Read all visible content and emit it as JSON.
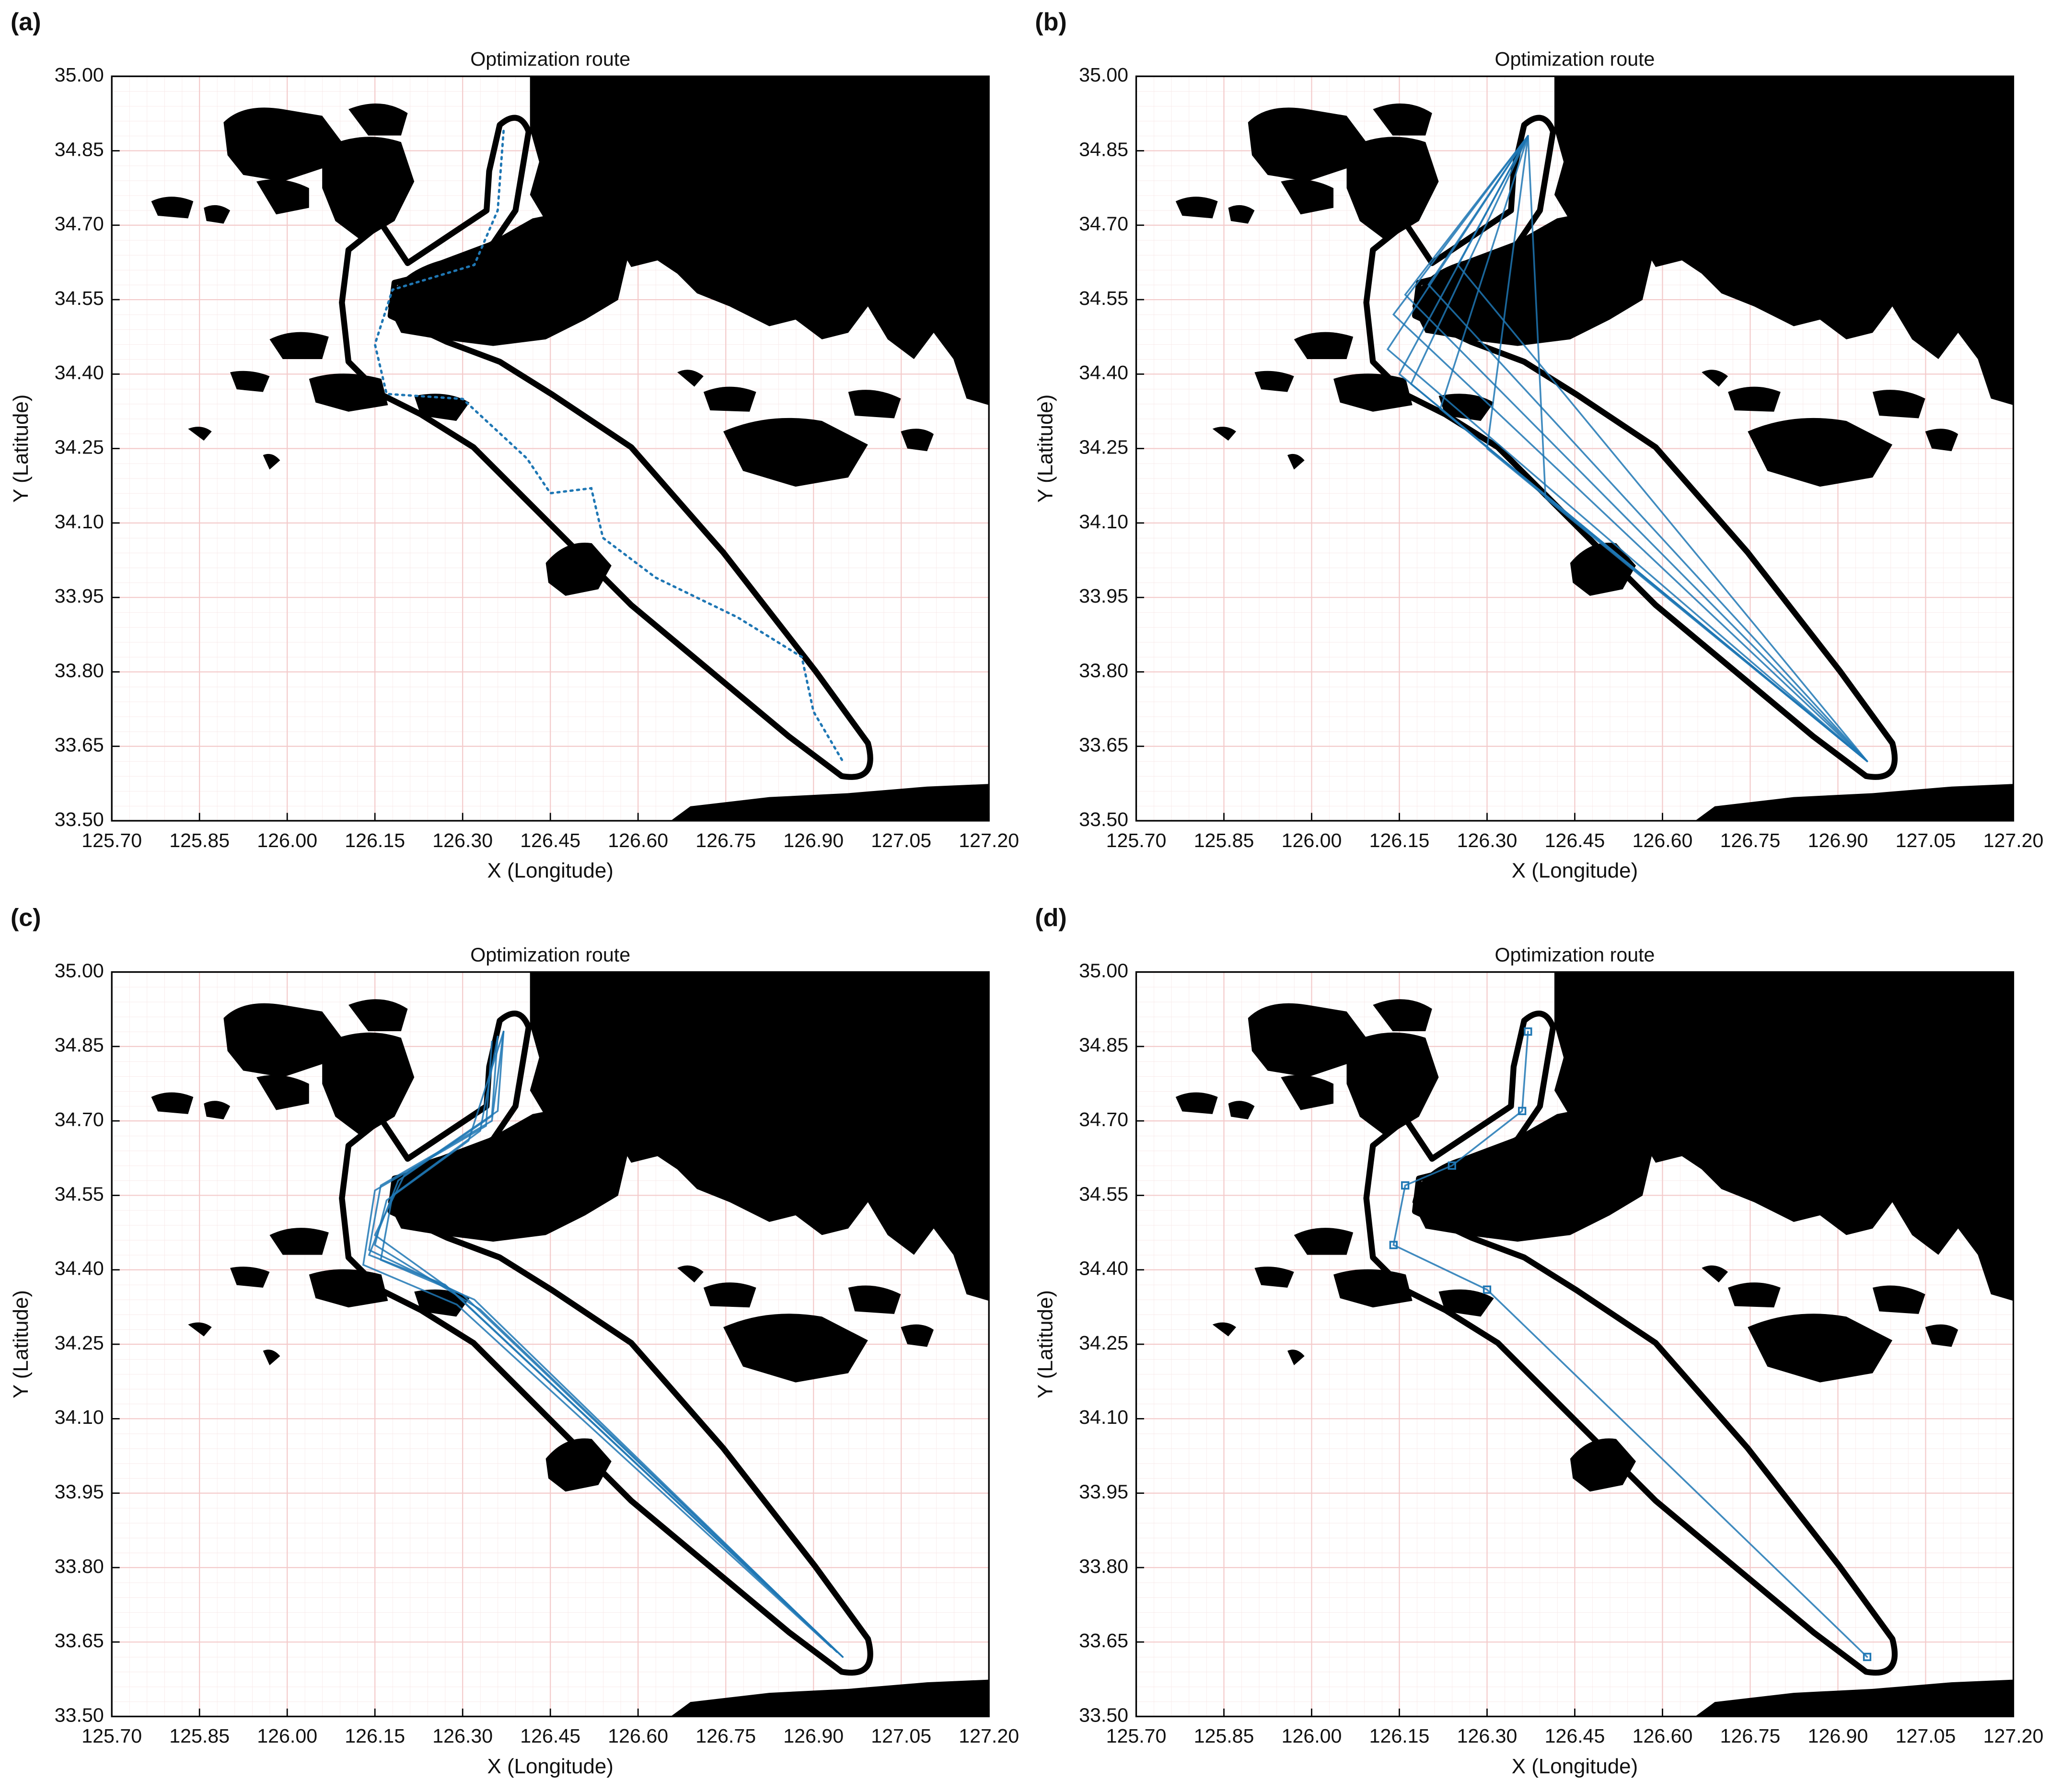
{
  "chart_data": [
    {
      "type": "line",
      "panel_label": "(a)",
      "title": "Optimization route",
      "xlabel": "X (Longitude)",
      "ylabel": "Y (Latitude)",
      "xlim": [
        125.7,
        127.2
      ],
      "ylim": [
        33.5,
        35.0
      ],
      "xticks": [
        {
          "value": 125.7,
          "label": "125.70"
        },
        125.85,
        {
          "value": 126.0,
          "label": "126.00"
        },
        126.15,
        {
          "value": 126.3,
          "label": "126.30"
        },
        126.45,
        {
          "value": 126.6,
          "label": "126.60"
        },
        126.75,
        {
          "value": 126.9,
          "label": "126.90"
        },
        127.05,
        {
          "value": 127.2,
          "label": "127.20"
        }
      ],
      "yticks": [
        {
          "value": 33.5,
          "label": "33.50"
        },
        33.65,
        {
          "value": 33.8,
          "label": "33.80"
        },
        33.95,
        {
          "value": 34.1,
          "label": "34.10"
        },
        34.25,
        {
          "value": 34.4,
          "label": "34.40"
        },
        34.55,
        {
          "value": 34.7,
          "label": "34.70"
        },
        34.85,
        {
          "value": 35.0,
          "label": "35.00"
        }
      ],
      "grid": true,
      "linestyle": "dotted",
      "marker": "none",
      "series": [
        {
          "color": "#1f77b4",
          "x": [
            126.37,
            126.36,
            126.32,
            126.18,
            126.15,
            126.17,
            126.3,
            126.41,
            126.45,
            126.52,
            126.54,
            126.63,
            126.77,
            126.88,
            126.9,
            126.95
          ],
          "y": [
            34.89,
            34.73,
            34.62,
            34.57,
            34.46,
            34.36,
            34.35,
            34.23,
            34.16,
            34.17,
            34.07,
            33.99,
            33.91,
            33.83,
            33.72,
            33.62
          ]
        }
      ]
    },
    {
      "type": "line",
      "panel_label": "(b)",
      "title": "Optimization route",
      "xlabel": "X (Longitude)",
      "ylabel": "Y (Latitude)",
      "xlim": [
        125.7,
        127.2
      ],
      "ylim": [
        33.5,
        35.0
      ],
      "xticks": [
        {
          "value": 125.7,
          "label": "125.70"
        },
        125.85,
        {
          "value": 126.0,
          "label": "126.00"
        },
        126.15,
        {
          "value": 126.3,
          "label": "126.30"
        },
        126.45,
        {
          "value": 126.6,
          "label": "126.60"
        },
        126.75,
        {
          "value": 126.9,
          "label": "126.90"
        },
        127.05,
        {
          "value": 127.2,
          "label": "127.20"
        }
      ],
      "yticks": [
        {
          "value": 33.5,
          "label": "33.50"
        },
        33.65,
        {
          "value": 33.8,
          "label": "33.80"
        },
        33.95,
        {
          "value": 34.1,
          "label": "34.10"
        },
        34.25,
        {
          "value": 34.4,
          "label": "34.40"
        },
        34.55,
        {
          "value": 34.7,
          "label": "34.70"
        },
        34.85,
        {
          "value": 35.0,
          "label": "35.00"
        }
      ],
      "grid": true,
      "linestyle": "solid",
      "marker": "none",
      "series": [
        {
          "color": "#1f77b4",
          "x": [
            126.37,
            126.13,
            126.95
          ],
          "y": [
            34.88,
            34.45,
            33.62
          ]
        },
        {
          "color": "#1f77b4",
          "x": [
            126.37,
            126.14,
            126.95
          ],
          "y": [
            34.88,
            34.52,
            33.62
          ]
        },
        {
          "color": "#1f77b4",
          "x": [
            126.37,
            126.16,
            126.95
          ],
          "y": [
            34.88,
            34.56,
            33.62
          ]
        },
        {
          "color": "#1f77b4",
          "x": [
            126.37,
            126.2,
            126.95
          ],
          "y": [
            34.88,
            34.58,
            33.62
          ]
        },
        {
          "color": "#1f77b4",
          "x": [
            126.37,
            126.25,
            126.95
          ],
          "y": [
            34.88,
            34.62,
            33.62
          ]
        },
        {
          "color": "#1f77b4",
          "x": [
            126.37,
            126.15,
            126.95
          ],
          "y": [
            34.88,
            34.4,
            33.62
          ]
        },
        {
          "color": "#1f77b4",
          "x": [
            126.37,
            126.17,
            126.95
          ],
          "y": [
            34.88,
            34.38,
            33.62
          ]
        },
        {
          "color": "#1f77b4",
          "x": [
            126.37,
            126.22,
            126.95
          ],
          "y": [
            34.88,
            34.33,
            33.62
          ]
        },
        {
          "color": "#1f77b4",
          "x": [
            126.37,
            126.3,
            126.95
          ],
          "y": [
            34.88,
            34.25,
            33.62
          ]
        },
        {
          "color": "#1f77b4",
          "x": [
            126.37,
            126.4,
            126.95
          ],
          "y": [
            34.88,
            34.15,
            33.62
          ]
        }
      ]
    },
    {
      "type": "line",
      "panel_label": "(c)",
      "title": "Optimization route",
      "xlabel": "X (Longitude)",
      "ylabel": "Y (Latitude)",
      "xlim": [
        125.7,
        127.2
      ],
      "ylim": [
        33.5,
        35.0
      ],
      "xticks": [
        {
          "value": 125.7,
          "label": "125.70"
        },
        125.85,
        {
          "value": 126.0,
          "label": "126.00"
        },
        126.15,
        {
          "value": 126.3,
          "label": "126.30"
        },
        126.45,
        {
          "value": 126.6,
          "label": "126.60"
        },
        126.75,
        {
          "value": 126.9,
          "label": "126.90"
        },
        127.05,
        {
          "value": 127.2,
          "label": "127.20"
        }
      ],
      "yticks": [
        {
          "value": 33.5,
          "label": "33.50"
        },
        33.65,
        {
          "value": 33.8,
          "label": "33.80"
        },
        33.95,
        {
          "value": 34.1,
          "label": "34.10"
        },
        34.25,
        {
          "value": 34.4,
          "label": "34.40"
        },
        34.55,
        {
          "value": 34.7,
          "label": "34.70"
        },
        34.85,
        {
          "value": 35.0,
          "label": "35.00"
        }
      ],
      "grid": true,
      "linestyle": "solid",
      "marker": "none",
      "series": [
        {
          "color": "#1f77b4",
          "x": [
            126.37,
            126.35,
            126.16,
            126.14,
            126.3,
            126.95
          ],
          "y": [
            34.88,
            34.7,
            34.57,
            34.44,
            34.35,
            33.62
          ]
        },
        {
          "color": "#1f77b4",
          "x": [
            126.36,
            126.33,
            126.18,
            126.16,
            126.32,
            126.94
          ],
          "y": [
            34.87,
            34.68,
            34.55,
            34.42,
            34.34,
            33.63
          ]
        },
        {
          "color": "#1f77b4",
          "x": [
            126.37,
            126.36,
            126.2,
            126.15,
            126.28,
            126.95
          ],
          "y": [
            34.88,
            34.72,
            34.59,
            34.47,
            34.36,
            33.62
          ]
        },
        {
          "color": "#1f77b4",
          "x": [
            126.35,
            126.34,
            126.15,
            126.13,
            126.29,
            126.93
          ],
          "y": [
            34.86,
            34.69,
            34.56,
            34.41,
            34.33,
            33.64
          ]
        },
        {
          "color": "#1f77b4",
          "x": [
            126.37,
            126.31,
            126.17,
            126.15,
            126.33,
            126.95
          ],
          "y": [
            34.88,
            34.66,
            34.54,
            34.45,
            34.32,
            33.62
          ]
        },
        {
          "color": "#1f77b4",
          "x": [
            126.36,
            126.35,
            126.19,
            126.14,
            126.27,
            126.94
          ],
          "y": [
            34.87,
            34.71,
            34.58,
            34.43,
            34.37,
            33.63
          ]
        }
      ]
    },
    {
      "type": "line",
      "panel_label": "(d)",
      "title": "Optimization route",
      "xlabel": "X (Longitude)",
      "ylabel": "Y (Latitude)",
      "xlim": [
        125.7,
        127.2
      ],
      "ylim": [
        33.5,
        35.0
      ],
      "xticks": [
        {
          "value": 125.7,
          "label": "125.70"
        },
        125.85,
        {
          "value": 126.0,
          "label": "126.00"
        },
        126.15,
        {
          "value": 126.3,
          "label": "126.30"
        },
        126.45,
        {
          "value": 126.6,
          "label": "126.60"
        },
        126.75,
        {
          "value": 126.9,
          "label": "126.90"
        },
        127.05,
        {
          "value": 127.2,
          "label": "127.20"
        }
      ],
      "yticks": [
        {
          "value": 33.5,
          "label": "33.50"
        },
        33.65,
        {
          "value": 33.8,
          "label": "33.80"
        },
        33.95,
        {
          "value": 34.1,
          "label": "34.10"
        },
        34.25,
        {
          "value": 34.4,
          "label": "34.40"
        },
        34.55,
        {
          "value": 34.7,
          "label": "34.70"
        },
        34.85,
        {
          "value": 35.0,
          "label": "35.00"
        }
      ],
      "grid": true,
      "linestyle": "solid",
      "marker": "square",
      "series": [
        {
          "color": "#1f77b4",
          "x": [
            126.37,
            126.36,
            126.24,
            126.16,
            126.14,
            126.3,
            126.95
          ],
          "y": [
            34.88,
            34.72,
            34.61,
            34.57,
            34.45,
            34.36,
            33.62
          ]
        }
      ]
    }
  ]
}
